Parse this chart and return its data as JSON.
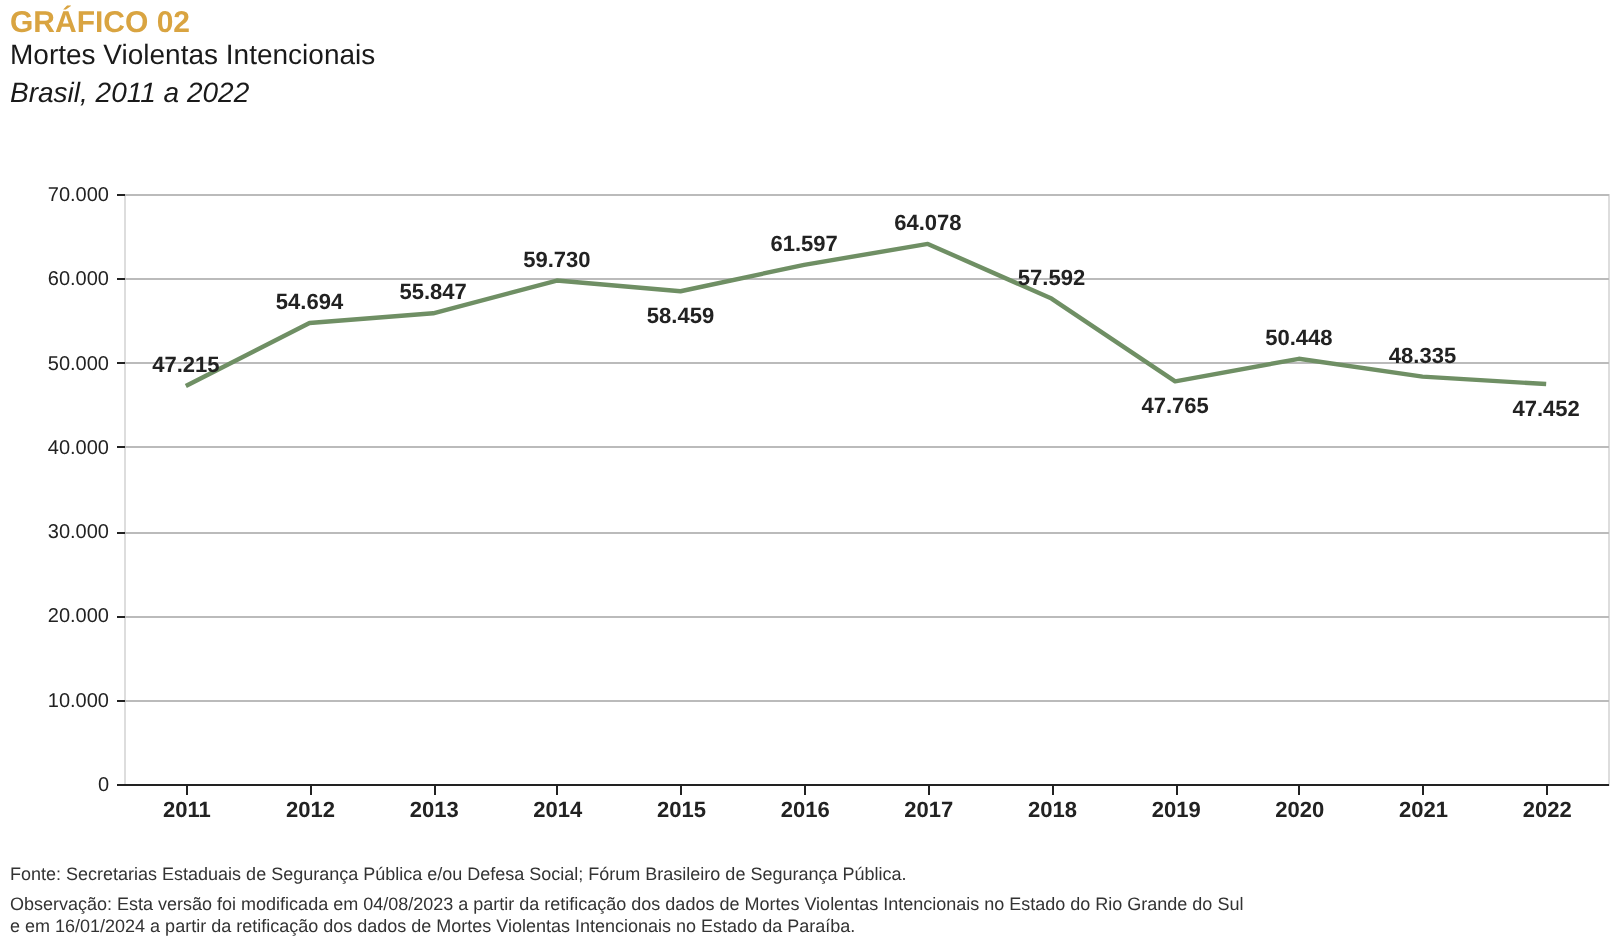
{
  "chart_data": {
    "type": "line",
    "title": "Mortes Violentas Intencionais",
    "subtitle": "Brasil, 2011 a 2022",
    "categories": [
      "2011",
      "2012",
      "2013",
      "2014",
      "2015",
      "2016",
      "2017",
      "2018",
      "2019",
      "2020",
      "2021",
      "2022"
    ],
    "series": [
      {
        "color": "#6f8f64",
        "values": [
          47215,
          54694,
          55847,
          59730,
          58459,
          61597,
          64078,
          57592,
          47765,
          50448,
          48335,
          47452
        ],
        "value_labels": [
          "47.215",
          "54.694",
          "55.847",
          "59.730",
          "58.459",
          "61.597",
          "64.078",
          "57.592",
          "47.765",
          "50.448",
          "48.335",
          "47.452"
        ]
      }
    ],
    "ylim": [
      0,
      70000
    ],
    "yticks": [
      0,
      {
        "value": 10000,
        "label": "10.000"
      },
      {
        "value": 20000,
        "label": "20.000"
      },
      {
        "value": 30000,
        "label": "30.000"
      },
      {
        "value": 40000,
        "label": "40.000"
      },
      {
        "value": 50000,
        "label": "50.000"
      },
      {
        "value": 60000,
        "label": "60.000"
      },
      {
        "value": 70000,
        "label": "70.000"
      }
    ],
    "grid": "y",
    "marker": "none",
    "line_style": "solid",
    "annotations": [
      "GRÁFICO 02",
      "Fonte: Secretarias Estaduais de Segurança Pública e/ou Defesa Social; Fórum Brasileiro de Segurança Pública.",
      "Observação: Esta versão foi modificada em 04/08/2023 a partir da retificação dos dados de Mortes Violentas Intencionais no Estado do Rio Grande do Sul e em 16/01/2024 a partir da retificação dos dados de Mortes Violentas Intencionais no Estado da Paraíba."
    ]
  }
}
